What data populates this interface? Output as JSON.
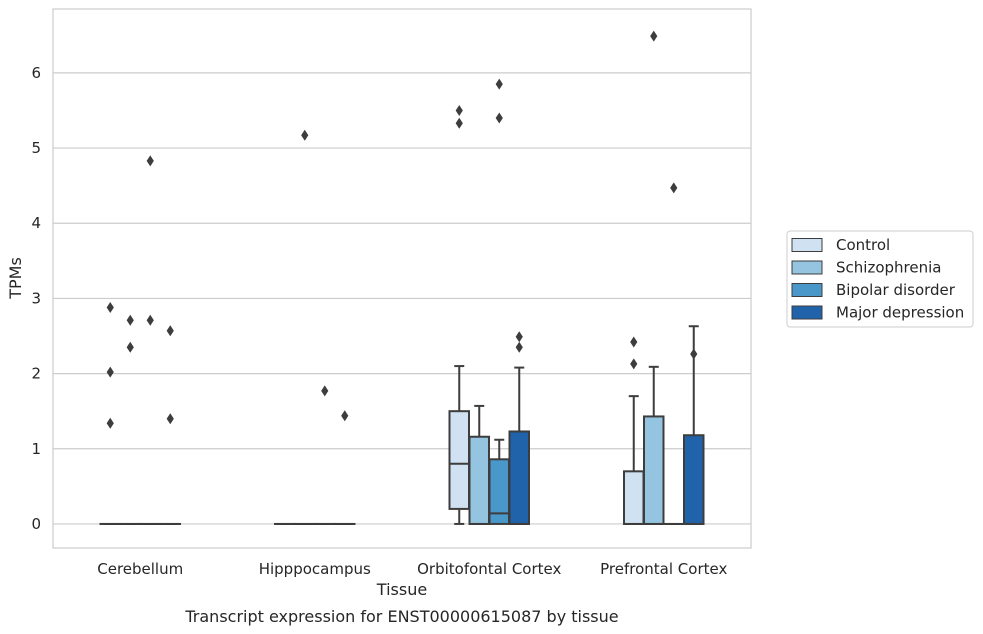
{
  "chart_data": {
    "type": "box",
    "title": "Transcript expression for ENST00000615087 by tissue",
    "xlabel": "Tissue",
    "ylabel": "TPMs",
    "ylim": [
      -0.32,
      6.85
    ],
    "yticks": [
      0,
      1,
      2,
      3,
      4,
      5,
      6
    ],
    "grid": "horizontal",
    "legend_placement": "right",
    "categories": [
      "Cerebellum",
      "Hipppocampus",
      "Orbitofontal Cortex",
      "Prefrontal Cortex"
    ],
    "series": [
      {
        "name": "Control",
        "color": "#d0e1f2",
        "boxes": [
          {
            "q1": 0,
            "median": 0,
            "q3": 0,
            "whisker_low": 0,
            "whisker_high": 0,
            "outliers": [
              2.88,
              2.02,
              1.34
            ]
          },
          {
            "q1": 0,
            "median": 0,
            "q3": 0,
            "whisker_low": 0,
            "whisker_high": 0,
            "outliers": []
          },
          {
            "q1": 0.2,
            "median": 0.8,
            "q3": 1.5,
            "whisker_low": 0,
            "whisker_high": 2.1,
            "outliers": [
              5.5,
              5.33
            ]
          },
          {
            "q1": 0,
            "median": 0,
            "q3": 0.7,
            "whisker_low": 0,
            "whisker_high": 1.7,
            "outliers": [
              2.42,
              2.13
            ]
          }
        ]
      },
      {
        "name": "Schizophrenia",
        "color": "#94c4df",
        "boxes": [
          {
            "q1": 0,
            "median": 0,
            "q3": 0,
            "whisker_low": 0,
            "whisker_high": 0,
            "outliers": [
              2.71,
              2.35
            ]
          },
          {
            "q1": 0,
            "median": 0,
            "q3": 0,
            "whisker_low": 0,
            "whisker_high": 0,
            "outliers": [
              5.17
            ]
          },
          {
            "q1": 0,
            "median": 0,
            "q3": 1.16,
            "whisker_low": 0,
            "whisker_high": 1.57,
            "outliers": []
          },
          {
            "q1": 0,
            "median": 0,
            "q3": 1.43,
            "whisker_low": 0,
            "whisker_high": 2.09,
            "outliers": [
              6.49
            ]
          }
        ]
      },
      {
        "name": "Bipolar disorder",
        "color": "#4a98c9",
        "boxes": [
          {
            "q1": 0,
            "median": 0,
            "q3": 0,
            "whisker_low": 0,
            "whisker_high": 0,
            "outliers": [
              4.83,
              2.71
            ]
          },
          {
            "q1": 0,
            "median": 0,
            "q3": 0,
            "whisker_low": 0,
            "whisker_high": 0,
            "outliers": [
              1.77
            ]
          },
          {
            "q1": 0,
            "median": 0.14,
            "q3": 0.86,
            "whisker_low": 0,
            "whisker_high": 1.12,
            "outliers": [
              5.85,
              5.4
            ]
          },
          {
            "q1": 0,
            "median": 0,
            "q3": 0,
            "whisker_low": 0,
            "whisker_high": 0,
            "outliers": [
              4.47
            ]
          }
        ]
      },
      {
        "name": "Major depression",
        "color": "#2163aa",
        "boxes": [
          {
            "q1": 0,
            "median": 0,
            "q3": 0,
            "whisker_low": 0,
            "whisker_high": 0,
            "outliers": [
              2.57,
              1.4
            ]
          },
          {
            "q1": 0,
            "median": 0,
            "q3": 0,
            "whisker_low": 0,
            "whisker_high": 0,
            "outliers": [
              1.44
            ]
          },
          {
            "q1": 0,
            "median": 0,
            "q3": 1.23,
            "whisker_low": 0,
            "whisker_high": 2.08,
            "outliers": [
              2.49,
              2.35
            ]
          },
          {
            "q1": 0,
            "median": 0,
            "q3": 1.18,
            "whisker_low": 0,
            "whisker_high": 2.63,
            "outliers": [
              2.26
            ]
          }
        ]
      }
    ]
  }
}
